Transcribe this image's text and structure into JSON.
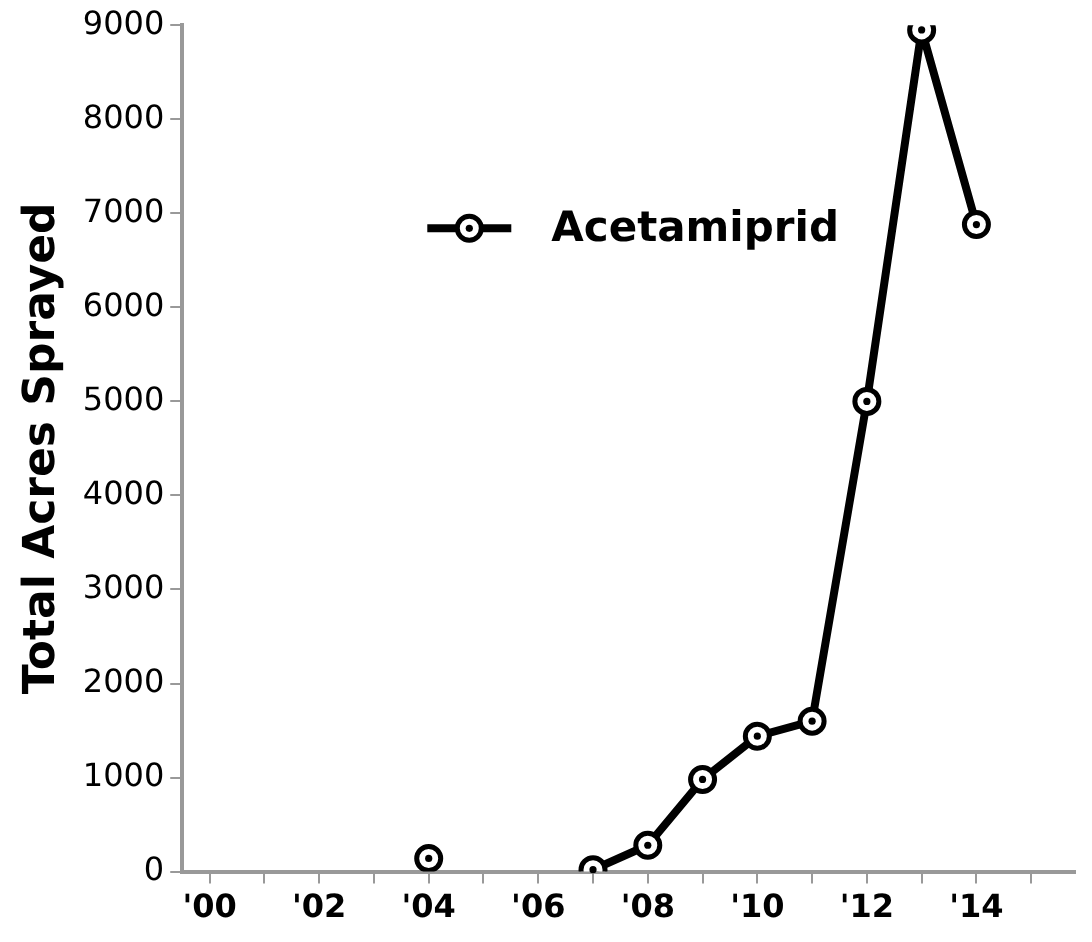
{
  "chart_data": {
    "type": "line",
    "ylabel": "Total Acres Sprayed",
    "x": [
      2004,
      2005,
      2006,
      2007,
      2008,
      2009,
      2010,
      2011,
      2012,
      2013,
      2014
    ],
    "series": [
      {
        "name": "Acetamiprid",
        "color": "#000000",
        "values": [
          140,
          null,
          null,
          20,
          280,
          980,
          1440,
          1600,
          5000,
          8950,
          6880
        ]
      }
    ],
    "xlim": [
      1999.5,
      2015.8
    ],
    "xticks": [
      {
        "value": 2000,
        "label": "'00"
      },
      {
        "value": 2001,
        "label": null
      },
      {
        "value": 2002,
        "label": "'02"
      },
      {
        "value": 2003,
        "label": null
      },
      {
        "value": 2004,
        "label": "'04"
      },
      {
        "value": 2005,
        "label": null
      },
      {
        "value": 2006,
        "label": "'06"
      },
      {
        "value": 2007,
        "label": null
      },
      {
        "value": 2008,
        "label": "'08"
      },
      {
        "value": 2009,
        "label": null
      },
      {
        "value": 2010,
        "label": "'10"
      },
      {
        "value": 2011,
        "label": null
      },
      {
        "value": 2012,
        "label": "'12"
      },
      {
        "value": 2013,
        "label": null
      },
      {
        "value": 2014,
        "label": "'14"
      },
      {
        "value": 2015,
        "label": null
      }
    ],
    "ylim": [
      0,
      9000
    ],
    "yticks": [
      0,
      1000,
      2000,
      3000,
      4000,
      5000,
      6000,
      7000,
      8000,
      9000
    ],
    "grid": false,
    "legend": "right",
    "marker": "circle",
    "line_style": "solid"
  }
}
